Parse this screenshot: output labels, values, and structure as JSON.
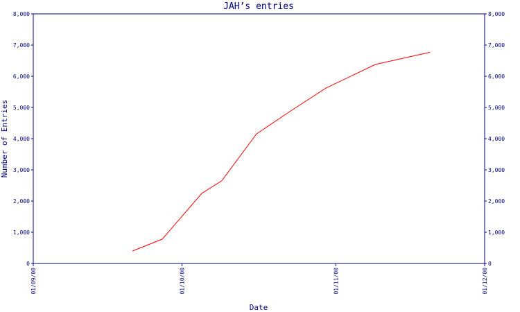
{
  "chart_data": {
    "type": "line",
    "title": "JAH’s entries",
    "xlabel": "Date",
    "ylabel": "Number of Entries",
    "ylim": [
      0,
      8000
    ],
    "yticks": [
      0,
      1000,
      2000,
      3000,
      4000,
      5000,
      6000,
      7000,
      8000
    ],
    "ytick_labels": [
      "0",
      "1,000",
      "2,000",
      "3,000",
      "4,000",
      "5,000",
      "6,000",
      "7,000",
      "8,000"
    ],
    "xlim": [
      "2000-09-01",
      "2000-12-01"
    ],
    "xticks": [
      "2000-09-01",
      "2000-10-01",
      "2000-11-01",
      "2000-12-01"
    ],
    "xtick_labels": [
      "01/09/00",
      "01/10/00",
      "01/11/00",
      "01/12/00"
    ],
    "right_axis": true,
    "grid": false,
    "colors": {
      "axis": "#00007f",
      "series": "#ff0000",
      "background": "#ffffff"
    },
    "series": [
      {
        "x": [
          "2000-09-21",
          "2000-09-27",
          "2000-10-05",
          "2000-10-09",
          "2000-10-16",
          "2000-10-23",
          "2000-10-30",
          "2000-11-09",
          "2000-11-20"
        ],
        "y": [
          400,
          780,
          2250,
          2650,
          4150,
          4900,
          5620,
          6380,
          6770
        ]
      }
    ]
  }
}
